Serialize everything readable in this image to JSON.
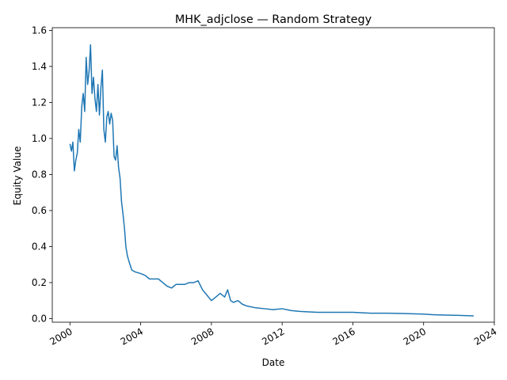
{
  "chart_data": {
    "type": "line",
    "title": "MHK_adjclose — Random Strategy",
    "xlabel": "Date",
    "ylabel": "Equity Value",
    "xlim": [
      "1999-01-01",
      "2024-01-01"
    ],
    "ylim": [
      -0.02,
      1.615
    ],
    "x_ticks": [
      "2000",
      "2004",
      "2008",
      "2012",
      "2016",
      "2020",
      "2024"
    ],
    "y_ticks": [
      "0.0",
      "0.2",
      "0.4",
      "0.6",
      "0.8",
      "1.0",
      "1.2",
      "1.4",
      "1.6"
    ],
    "grid": false,
    "legend": "none",
    "color": "#1f77b4",
    "series": [
      {
        "x": [
          "2000-01-01",
          "2000-02-01",
          "2000-03-01",
          "2000-04-01",
          "2000-05-01",
          "2000-06-01",
          "2000-07-01",
          "2000-08-01",
          "2000-09-01",
          "2000-10-01",
          "2000-11-01",
          "2000-12-01",
          "2001-01-01",
          "2001-02-01",
          "2001-03-01",
          "2001-04-01",
          "2001-05-01",
          "2001-06-01",
          "2001-07-01",
          "2001-08-01",
          "2001-09-01",
          "2001-10-01",
          "2001-11-01",
          "2001-12-01",
          "2002-01-01",
          "2002-02-01",
          "2002-03-01",
          "2002-04-01",
          "2002-05-01",
          "2002-06-01",
          "2002-07-01",
          "2002-08-01",
          "2002-09-01",
          "2002-10-01",
          "2002-11-01",
          "2002-12-01",
          "2003-01-01",
          "2003-02-01",
          "2003-03-01",
          "2003-04-01",
          "2003-05-01",
          "2003-07-01",
          "2003-09-01",
          "2004-01-01",
          "2004-04-01",
          "2004-07-01",
          "2004-10-01",
          "2005-01-01",
          "2005-04-01",
          "2005-07-01",
          "2005-10-01",
          "2006-01-01",
          "2006-04-01",
          "2006-07-01",
          "2006-10-01",
          "2007-01-01",
          "2007-04-01",
          "2007-07-01",
          "2007-10-01",
          "2008-01-01",
          "2008-04-01",
          "2008-07-01",
          "2008-10-01",
          "2008-12-01",
          "2009-02-01",
          "2009-04-01",
          "2009-07-01",
          "2009-10-01",
          "2010-01-01",
          "2010-07-01",
          "2011-01-01",
          "2011-07-01",
          "2012-01-01",
          "2012-07-01",
          "2013-01-01",
          "2014-01-01",
          "2015-01-01",
          "2016-01-01",
          "2017-01-01",
          "2018-01-01",
          "2019-01-01",
          "2020-01-01",
          "2020-07-01",
          "2021-01-01",
          "2022-01-01",
          "2022-11-01"
        ],
        "values": [
          0.97,
          0.93,
          0.98,
          0.82,
          0.88,
          0.92,
          1.05,
          0.98,
          1.18,
          1.25,
          1.15,
          1.45,
          1.3,
          1.38,
          1.52,
          1.25,
          1.34,
          1.22,
          1.15,
          1.3,
          1.13,
          1.28,
          1.38,
          1.05,
          0.98,
          1.12,
          1.15,
          1.08,
          1.14,
          1.1,
          0.9,
          0.88,
          0.96,
          0.84,
          0.78,
          0.65,
          0.58,
          0.5,
          0.4,
          0.35,
          0.32,
          0.27,
          0.26,
          0.25,
          0.24,
          0.22,
          0.22,
          0.22,
          0.2,
          0.18,
          0.17,
          0.19,
          0.19,
          0.19,
          0.2,
          0.2,
          0.21,
          0.16,
          0.13,
          0.1,
          0.12,
          0.14,
          0.12,
          0.16,
          0.1,
          0.09,
          0.1,
          0.08,
          0.07,
          0.06,
          0.055,
          0.05,
          0.055,
          0.045,
          0.04,
          0.035,
          0.035,
          0.035,
          0.03,
          0.03,
          0.028,
          0.025,
          0.022,
          0.02,
          0.018,
          0.015
        ]
      }
    ]
  }
}
